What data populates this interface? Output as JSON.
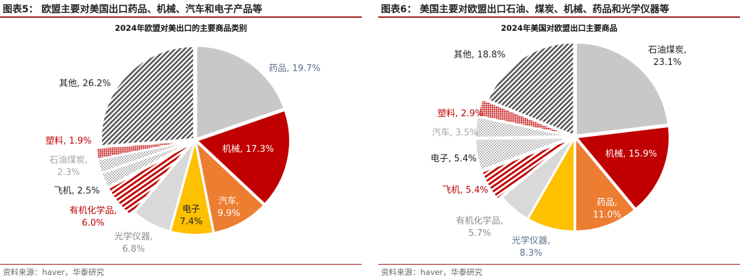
{
  "panels": [
    {
      "figure_title": "图表5：  欧盟主要对美国出口药品、机械、汽车和电子产品等",
      "source": "资料来源：haver，华泰研究"
    },
    {
      "figure_title": "图表6：  美国主要对欧盟出口石油、煤炭、机械、药品和光学仪器等",
      "source": "资料来源：haver，华泰研究"
    }
  ],
  "chart_data": [
    {
      "type": "pie",
      "title": "2024年欧盟对美出口的主要商品类别",
      "unit": "%",
      "slices": [
        {
          "label": "药品",
          "value": 19.7,
          "fill": "#c8c8c8",
          "pattern": "solid",
          "label_color": "#5b6f8e",
          "exploded": false
        },
        {
          "label": "机械",
          "value": 17.3,
          "fill": "#c00000",
          "pattern": "solid",
          "label_color": "#ffffff",
          "exploded": false
        },
        {
          "label": "汽车",
          "value": 9.9,
          "fill": "#ed7d31",
          "pattern": "solid",
          "label_color": "#ffffff",
          "exploded": false
        },
        {
          "label": "电子",
          "value": 7.4,
          "fill": "#ffc000",
          "pattern": "solid",
          "label_color": "#222222",
          "exploded": false
        },
        {
          "label": "光学仪器",
          "value": 6.8,
          "fill": "#d9d9d9",
          "pattern": "solid",
          "label_color": "#8c8c8c",
          "exploded": false
        },
        {
          "label": "有机化学品",
          "value": 6.0,
          "fill": "#c00000",
          "pattern": "hstripe",
          "label_color": "#c00000",
          "exploded": true
        },
        {
          "label": "飞机",
          "value": 2.5,
          "fill": "#bfbfbf",
          "pattern": "dots",
          "label_color": "#222222",
          "exploded": true
        },
        {
          "label": "石油煤炭",
          "value": 2.3,
          "fill": "#bfbfbf",
          "pattern": "dots",
          "label_color": "#a6a6a6",
          "exploded": true
        },
        {
          "label": "塑料",
          "value": 1.9,
          "fill": "#c00000",
          "pattern": "check",
          "label_color": "#c00000",
          "exploded": true
        },
        {
          "label": "其他",
          "value": 26.2,
          "fill": "#595959",
          "pattern": "diag",
          "label_color": "#222222",
          "exploded": false
        }
      ]
    },
    {
      "type": "pie",
      "title": "2024年美国对欧盟出口主要商品",
      "unit": "%",
      "slices": [
        {
          "label": "石油煤炭",
          "value": 23.1,
          "fill": "#c8c8c8",
          "pattern": "solid",
          "label_color": "#222222",
          "exploded": false
        },
        {
          "label": "机械",
          "value": 15.9,
          "fill": "#c00000",
          "pattern": "solid",
          "label_color": "#ffffff",
          "exploded": false
        },
        {
          "label": "药品",
          "value": 11.0,
          "fill": "#ed7d31",
          "pattern": "solid",
          "label_color": "#ffffff",
          "exploded": false
        },
        {
          "label": "光学仪器",
          "value": 8.3,
          "fill": "#ffc000",
          "pattern": "solid",
          "label_color": "#5b6f8e",
          "exploded": false
        },
        {
          "label": "有机化学品",
          "value": 5.7,
          "fill": "#d9d9d9",
          "pattern": "solid",
          "label_color": "#8c8c8c",
          "exploded": false
        },
        {
          "label": "飞机",
          "value": 5.4,
          "fill": "#c00000",
          "pattern": "hstripe",
          "label_color": "#c00000",
          "exploded": true
        },
        {
          "label": "电子",
          "value": 5.4,
          "fill": "#bfbfbf",
          "pattern": "dots",
          "label_color": "#222222",
          "exploded": true
        },
        {
          "label": "汽车",
          "value": 3.5,
          "fill": "#bfbfbf",
          "pattern": "dots",
          "label_color": "#a6a6a6",
          "exploded": true
        },
        {
          "label": "塑料",
          "value": 2.9,
          "fill": "#c00000",
          "pattern": "check",
          "label_color": "#c00000",
          "exploded": true
        },
        {
          "label": "其他",
          "value": 18.8,
          "fill": "#595959",
          "pattern": "diag",
          "label_color": "#222222",
          "exploded": false
        }
      ]
    }
  ]
}
